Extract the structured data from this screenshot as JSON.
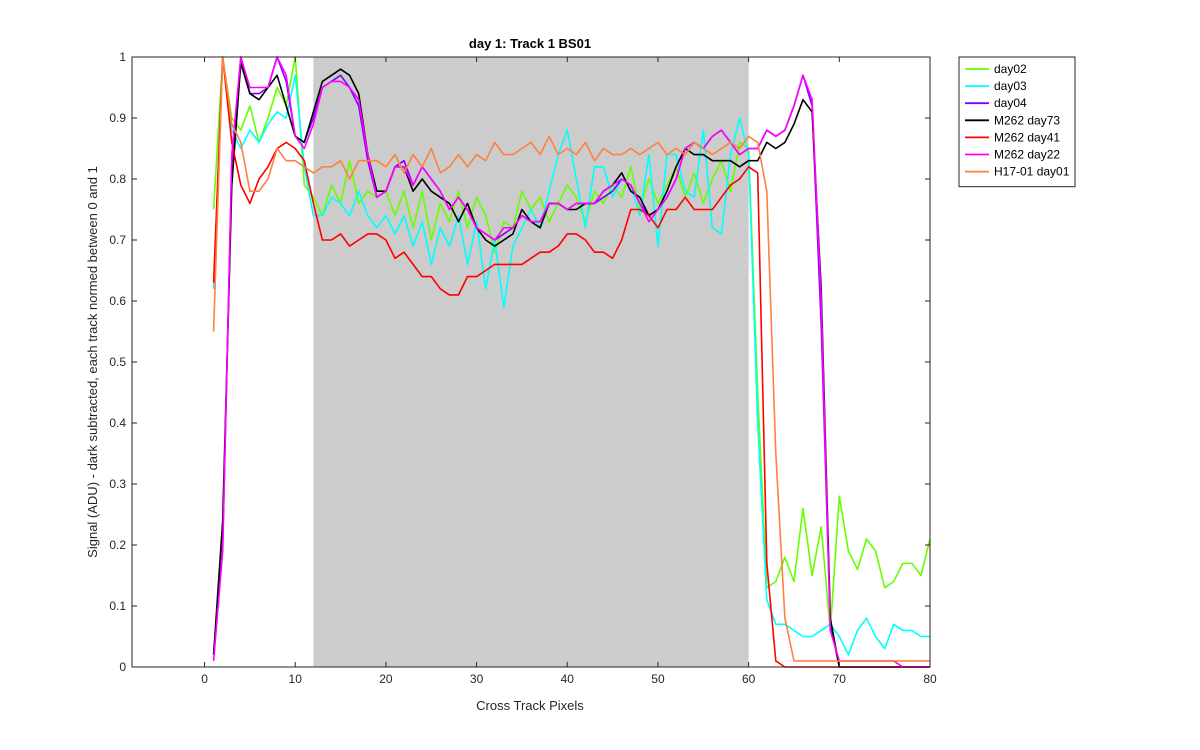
{
  "chart_data": {
    "type": "line",
    "title": "day 1: Track 1  BS01",
    "xlabel": "Cross Track Pixels",
    "ylabel": "Signal (ADU) - dark subtracted, each track normed between 0 and 1",
    "xlim": [
      -8,
      80
    ],
    "ylim": [
      0,
      1
    ],
    "xticks": [
      0,
      10,
      20,
      30,
      40,
      50,
      60,
      70,
      80
    ],
    "yticks": [
      0,
      0.1,
      0.2,
      0.3,
      0.4,
      0.5,
      0.6,
      0.7,
      0.8,
      0.9,
      1
    ],
    "ytick_labels": [
      "0",
      "0.1",
      "0.2",
      "0.3",
      "0.4",
      "0.5",
      "0.6",
      "0.7",
      "0.8",
      "0.9",
      "1"
    ],
    "grid": false,
    "legend_position": "outside-top-right",
    "shaded_region": {
      "x": [
        12,
        60
      ],
      "color": "#cccccc"
    },
    "series": [
      {
        "name": "day02",
        "color": "#66ff00",
        "x": [
          1,
          2,
          3,
          4,
          5,
          6,
          7,
          8,
          9,
          10,
          11,
          12,
          13,
          14,
          15,
          16,
          17,
          18,
          19,
          20,
          21,
          22,
          23,
          24,
          25,
          26,
          27,
          28,
          29,
          30,
          31,
          32,
          33,
          34,
          35,
          36,
          37,
          38,
          39,
          40,
          41,
          42,
          43,
          44,
          45,
          46,
          47,
          48,
          49,
          50,
          51,
          52,
          53,
          54,
          55,
          56,
          57,
          58,
          59,
          60,
          61,
          62,
          63,
          64,
          65,
          66,
          67,
          68,
          69,
          70,
          71,
          72,
          73,
          74,
          75,
          76,
          77,
          78,
          79,
          80
        ],
        "y": [
          0.75,
          1.0,
          0.9,
          0.88,
          0.92,
          0.86,
          0.9,
          0.95,
          0.92,
          1.0,
          0.79,
          0.77,
          0.74,
          0.79,
          0.76,
          0.83,
          0.76,
          0.78,
          0.77,
          0.78,
          0.74,
          0.78,
          0.72,
          0.78,
          0.7,
          0.76,
          0.73,
          0.78,
          0.72,
          0.77,
          0.74,
          0.68,
          0.73,
          0.72,
          0.78,
          0.75,
          0.77,
          0.73,
          0.76,
          0.79,
          0.77,
          0.73,
          0.78,
          0.76,
          0.79,
          0.77,
          0.82,
          0.75,
          0.8,
          0.76,
          0.79,
          0.82,
          0.77,
          0.81,
          0.76,
          0.8,
          0.83,
          0.78,
          0.86,
          0.85,
          0.45,
          0.13,
          0.14,
          0.18,
          0.14,
          0.26,
          0.15,
          0.23,
          0.06,
          0.28,
          0.19,
          0.16,
          0.21,
          0.19,
          0.13,
          0.14,
          0.17,
          0.17,
          0.15,
          0.21
        ]
      },
      {
        "name": "day03",
        "color": "#00ffff",
        "x": [
          1,
          2,
          3,
          4,
          5,
          6,
          7,
          8,
          9,
          10,
          11,
          12,
          13,
          14,
          15,
          16,
          17,
          18,
          19,
          20,
          21,
          22,
          23,
          24,
          25,
          26,
          27,
          28,
          29,
          30,
          31,
          32,
          33,
          34,
          35,
          36,
          37,
          38,
          39,
          40,
          41,
          42,
          43,
          44,
          45,
          46,
          47,
          48,
          49,
          50,
          51,
          52,
          53,
          54,
          55,
          56,
          57,
          58,
          59,
          60,
          61,
          62,
          63,
          64,
          65,
          66,
          67,
          68,
          69,
          70,
          71,
          72,
          73,
          74,
          75,
          76,
          77,
          78,
          79,
          80
        ],
        "y": [
          0.62,
          1.0,
          0.88,
          0.85,
          0.88,
          0.86,
          0.89,
          0.91,
          0.9,
          0.97,
          0.82,
          0.74,
          0.74,
          0.77,
          0.76,
          0.74,
          0.78,
          0.74,
          0.72,
          0.74,
          0.71,
          0.74,
          0.69,
          0.73,
          0.66,
          0.72,
          0.69,
          0.74,
          0.66,
          0.73,
          0.62,
          0.7,
          0.59,
          0.69,
          0.72,
          0.75,
          0.72,
          0.78,
          0.84,
          0.88,
          0.8,
          0.72,
          0.82,
          0.82,
          0.77,
          0.8,
          0.79,
          0.74,
          0.84,
          0.69,
          0.84,
          0.84,
          0.78,
          0.77,
          0.88,
          0.72,
          0.71,
          0.84,
          0.9,
          0.84,
          0.4,
          0.11,
          0.07,
          0.07,
          0.06,
          0.05,
          0.05,
          0.06,
          0.07,
          0.05,
          0.02,
          0.06,
          0.08,
          0.05,
          0.03,
          0.07,
          0.06,
          0.06,
          0.05,
          0.05
        ]
      },
      {
        "name": "day04",
        "color": "#8000ff",
        "x": [
          1,
          2,
          3,
          4,
          5,
          6,
          7,
          8,
          9,
          10,
          11,
          12,
          13,
          14,
          15,
          16,
          17,
          18,
          19,
          20,
          21,
          22,
          23,
          24,
          25,
          26,
          27,
          28,
          29,
          30,
          31,
          32,
          33,
          34,
          35,
          36,
          37,
          38,
          39,
          40,
          41,
          42,
          43,
          44,
          45,
          46,
          47,
          48,
          49,
          50,
          51,
          52,
          53,
          54,
          55,
          56,
          57,
          58,
          59,
          60,
          61,
          62,
          63,
          64,
          65,
          66,
          67,
          68,
          69,
          70,
          71,
          72,
          73,
          74,
          75,
          76,
          77,
          78,
          79,
          80
        ],
        "y": [
          0.02,
          0.2,
          0.82,
          1.0,
          0.94,
          0.94,
          0.95,
          1.0,
          0.96,
          0.87,
          0.86,
          0.9,
          0.95,
          0.96,
          0.97,
          0.95,
          0.92,
          0.83,
          0.77,
          0.78,
          0.82,
          0.83,
          0.79,
          0.82,
          0.8,
          0.78,
          0.75,
          0.77,
          0.75,
          0.72,
          0.71,
          0.7,
          0.71,
          0.72,
          0.74,
          0.73,
          0.73,
          0.76,
          0.76,
          0.75,
          0.76,
          0.76,
          0.76,
          0.77,
          0.78,
          0.8,
          0.79,
          0.76,
          0.74,
          0.75,
          0.77,
          0.8,
          0.85,
          0.86,
          0.85,
          0.87,
          0.88,
          0.86,
          0.84,
          0.85,
          0.85,
          0.88,
          0.87,
          0.88,
          0.92,
          0.97,
          0.92,
          0.56,
          0.07,
          0.0,
          0.0,
          0.0,
          0.0,
          0.0,
          0.0,
          0.0,
          0.0,
          0.0,
          0.0,
          0.0
        ]
      },
      {
        "name": "M262 day73",
        "color": "#000000",
        "x": [
          1,
          2,
          3,
          4,
          5,
          6,
          7,
          8,
          9,
          10,
          11,
          12,
          13,
          14,
          15,
          16,
          17,
          18,
          19,
          20,
          21,
          22,
          23,
          24,
          25,
          26,
          27,
          28,
          29,
          30,
          31,
          32,
          33,
          34,
          35,
          36,
          37,
          38,
          39,
          40,
          41,
          42,
          43,
          44,
          45,
          46,
          47,
          48,
          49,
          50,
          51,
          52,
          53,
          54,
          55,
          56,
          57,
          58,
          59,
          60,
          61,
          62,
          63,
          64,
          65,
          66,
          67,
          68,
          69,
          70,
          71,
          72,
          73,
          74,
          75,
          76,
          77,
          78,
          79,
          80
        ],
        "y": [
          0.02,
          0.24,
          0.79,
          0.99,
          0.94,
          0.93,
          0.95,
          0.97,
          0.92,
          0.87,
          0.86,
          0.91,
          0.96,
          0.97,
          0.98,
          0.97,
          0.94,
          0.84,
          0.78,
          0.78,
          0.82,
          0.82,
          0.78,
          0.8,
          0.78,
          0.77,
          0.76,
          0.73,
          0.76,
          0.72,
          0.7,
          0.69,
          0.7,
          0.71,
          0.75,
          0.73,
          0.72,
          0.76,
          0.76,
          0.75,
          0.75,
          0.76,
          0.76,
          0.78,
          0.79,
          0.81,
          0.78,
          0.77,
          0.74,
          0.75,
          0.78,
          0.82,
          0.85,
          0.84,
          0.84,
          0.83,
          0.83,
          0.83,
          0.82,
          0.83,
          0.83,
          0.86,
          0.85,
          0.86,
          0.89,
          0.93,
          0.91,
          0.62,
          0.08,
          0.0,
          0.0,
          0.0,
          0.0,
          0.0,
          0.0,
          0.0,
          0.0,
          0.0,
          0.0,
          0.0
        ]
      },
      {
        "name": "M262 day41",
        "color": "#ff0000",
        "x": [
          1,
          2,
          3,
          4,
          5,
          6,
          7,
          8,
          9,
          10,
          11,
          12,
          13,
          14,
          15,
          16,
          17,
          18,
          19,
          20,
          21,
          22,
          23,
          24,
          25,
          26,
          27,
          28,
          29,
          30,
          31,
          32,
          33,
          34,
          35,
          36,
          37,
          38,
          39,
          40,
          41,
          42,
          43,
          44,
          45,
          46,
          47,
          48,
          49,
          50,
          51,
          52,
          53,
          54,
          55,
          56,
          57,
          58,
          59,
          60,
          61,
          62,
          63,
          64,
          65,
          66,
          67,
          68,
          69,
          70,
          71,
          72,
          73,
          74,
          75,
          76,
          77,
          78,
          79,
          80
        ],
        "y": [
          0.63,
          1.0,
          0.86,
          0.79,
          0.76,
          0.8,
          0.82,
          0.85,
          0.86,
          0.85,
          0.83,
          0.76,
          0.7,
          0.7,
          0.71,
          0.69,
          0.7,
          0.71,
          0.71,
          0.7,
          0.67,
          0.68,
          0.66,
          0.64,
          0.64,
          0.62,
          0.61,
          0.61,
          0.64,
          0.64,
          0.65,
          0.66,
          0.66,
          0.66,
          0.66,
          0.67,
          0.68,
          0.68,
          0.69,
          0.71,
          0.71,
          0.7,
          0.68,
          0.68,
          0.67,
          0.7,
          0.75,
          0.75,
          0.74,
          0.72,
          0.75,
          0.75,
          0.77,
          0.75,
          0.75,
          0.75,
          0.77,
          0.79,
          0.8,
          0.82,
          0.81,
          0.17,
          0.01,
          0.0,
          0.0,
          0.0,
          0.0,
          0.0,
          0.0,
          0.0,
          0.0,
          0.0,
          0.0,
          0.0,
          0.0,
          0.0,
          0.0,
          0.0,
          0.0,
          0.0
        ]
      },
      {
        "name": "M262 day22",
        "color": "#ff00ff",
        "x": [
          1,
          2,
          3,
          4,
          5,
          6,
          7,
          8,
          9,
          10,
          11,
          12,
          13,
          14,
          15,
          16,
          17,
          18,
          19,
          20,
          21,
          22,
          23,
          24,
          25,
          26,
          27,
          28,
          29,
          30,
          31,
          32,
          33,
          34,
          35,
          36,
          37,
          38,
          39,
          40,
          41,
          42,
          43,
          44,
          45,
          46,
          47,
          48,
          49,
          50,
          51,
          52,
          53,
          54,
          55,
          56,
          57,
          58,
          59,
          60,
          61,
          62,
          63,
          64,
          65,
          66,
          67,
          68,
          69,
          70,
          71,
          72,
          73,
          74,
          75,
          76,
          77,
          78,
          79,
          80
        ],
        "y": [
          0.01,
          0.19,
          0.84,
          1.0,
          0.95,
          0.95,
          0.95,
          1.0,
          0.97,
          0.87,
          0.85,
          0.89,
          0.95,
          0.96,
          0.96,
          0.95,
          0.93,
          0.84,
          0.77,
          0.78,
          0.82,
          0.82,
          0.79,
          0.82,
          0.8,
          0.78,
          0.75,
          0.77,
          0.75,
          0.72,
          0.71,
          0.7,
          0.72,
          0.72,
          0.74,
          0.73,
          0.73,
          0.76,
          0.76,
          0.75,
          0.76,
          0.76,
          0.76,
          0.78,
          0.79,
          0.8,
          0.79,
          0.76,
          0.73,
          0.75,
          0.77,
          0.8,
          0.85,
          0.86,
          0.85,
          0.87,
          0.88,
          0.86,
          0.84,
          0.85,
          0.85,
          0.88,
          0.87,
          0.88,
          0.92,
          0.97,
          0.93,
          0.6,
          0.06,
          0.01,
          0.01,
          0.01,
          0.01,
          0.01,
          0.01,
          0.01,
          0.0,
          0.0,
          0.0,
          0.0
        ]
      },
      {
        "name": "H17-01 day01",
        "color": "#ff8040",
        "x": [
          1,
          2,
          3,
          4,
          5,
          6,
          7,
          8,
          9,
          10,
          11,
          12,
          13,
          14,
          15,
          16,
          17,
          18,
          19,
          20,
          21,
          22,
          23,
          24,
          25,
          26,
          27,
          28,
          29,
          30,
          31,
          32,
          33,
          34,
          35,
          36,
          37,
          38,
          39,
          40,
          41,
          42,
          43,
          44,
          45,
          46,
          47,
          48,
          49,
          50,
          51,
          52,
          53,
          54,
          55,
          56,
          57,
          58,
          59,
          60,
          61,
          62,
          63,
          64,
          65,
          66,
          67,
          68,
          69,
          70,
          71,
          72,
          73,
          74,
          75,
          76,
          77,
          78,
          79,
          80
        ],
        "y": [
          0.55,
          1.0,
          0.89,
          0.86,
          0.78,
          0.78,
          0.8,
          0.85,
          0.83,
          0.83,
          0.82,
          0.81,
          0.82,
          0.82,
          0.83,
          0.8,
          0.83,
          0.83,
          0.83,
          0.82,
          0.84,
          0.81,
          0.84,
          0.82,
          0.85,
          0.81,
          0.82,
          0.84,
          0.82,
          0.84,
          0.83,
          0.86,
          0.84,
          0.84,
          0.85,
          0.86,
          0.84,
          0.87,
          0.84,
          0.85,
          0.84,
          0.86,
          0.83,
          0.85,
          0.84,
          0.84,
          0.85,
          0.84,
          0.85,
          0.86,
          0.84,
          0.85,
          0.84,
          0.86,
          0.85,
          0.84,
          0.85,
          0.86,
          0.85,
          0.87,
          0.86,
          0.78,
          0.35,
          0.08,
          0.01,
          0.01,
          0.01,
          0.01,
          0.01,
          0.01,
          0.01,
          0.01,
          0.01,
          0.01,
          0.01,
          0.01,
          0.01,
          0.01,
          0.01,
          0.01
        ]
      }
    ]
  }
}
